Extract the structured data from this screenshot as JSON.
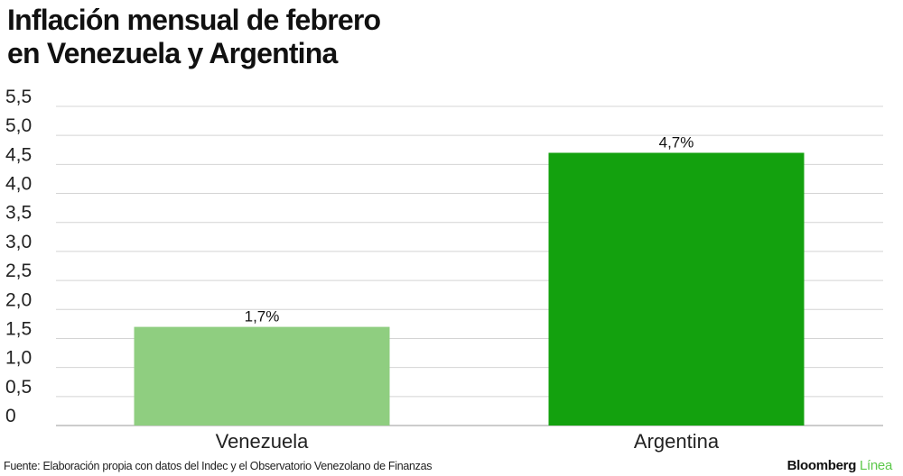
{
  "title_lines": [
    "Inflación mensual de febrero",
    "en Venezuela y Argentina"
  ],
  "source": "Fuente: Elaboración propia con datos del Indec y el Observatorio Venezolano de Finanzas",
  "brand": {
    "name": "Bloomberg",
    "sub": "Línea"
  },
  "colors": {
    "venezuela": "#8fce80",
    "argentina": "#13a10e",
    "grid": "#d4d4d4"
  },
  "chart_data": {
    "type": "bar",
    "title": "Inflación mensual de febrero en Venezuela y Argentina",
    "categories": [
      "Venezuela",
      "Argentina"
    ],
    "values": [
      1.7,
      4.7
    ],
    "data_labels": [
      "1,7%",
      "4,7%"
    ],
    "ylim": [
      0,
      5.5
    ],
    "yticks": [
      0,
      0.5,
      1.0,
      1.5,
      2.0,
      2.5,
      3.0,
      3.5,
      4.0,
      4.5,
      5.0,
      5.5
    ],
    "ytick_labels": [
      "0",
      "0,5",
      "1,0",
      "1,5",
      "2,0",
      "2,5",
      "3,0",
      "3,5",
      "4,0",
      "4,5",
      "5,0",
      "5,5"
    ],
    "xlabel": "",
    "ylabel": "",
    "grid": true,
    "legend": "none"
  }
}
